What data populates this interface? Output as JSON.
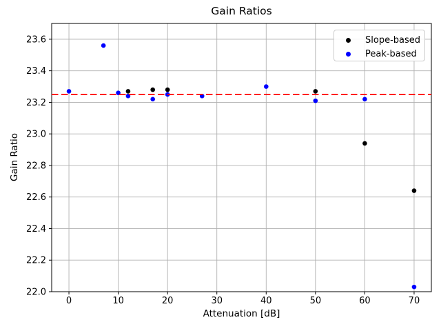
{
  "chart_data": {
    "type": "scatter",
    "title": "Gain Ratios",
    "xlabel": "Attenuation [dB]",
    "ylabel": "Gain Ratio",
    "xlim": [
      -3.5,
      73.5
    ],
    "ylim": [
      22.0,
      23.7
    ],
    "xticks": [
      0,
      10,
      20,
      30,
      40,
      50,
      60,
      70
    ],
    "yticks": [
      22.0,
      22.2,
      22.4,
      22.6,
      22.8,
      23.0,
      23.2,
      23.4,
      23.6
    ],
    "grid": true,
    "legend_position": "upper right",
    "series": [
      {
        "name": "Slope-based",
        "color": "#000000",
        "points": [
          [
            12,
            23.27
          ],
          [
            17,
            23.28
          ],
          [
            20,
            23.28
          ],
          [
            50,
            23.27
          ],
          [
            60,
            22.94
          ],
          [
            70,
            22.64
          ]
        ]
      },
      {
        "name": "Peak-based",
        "color": "#0000ff",
        "points": [
          [
            0,
            23.27
          ],
          [
            7,
            23.56
          ],
          [
            10,
            23.26
          ],
          [
            12,
            23.24
          ],
          [
            17,
            23.22
          ],
          [
            20,
            23.25
          ],
          [
            27,
            23.24
          ],
          [
            40,
            23.3
          ],
          [
            50,
            23.21
          ],
          [
            60,
            23.22
          ],
          [
            70,
            22.03
          ]
        ]
      }
    ],
    "reference_line": {
      "y": 23.25,
      "color": "#ff0000",
      "style": "dashed"
    },
    "colors": {
      "grid": "#b0b0b0",
      "spine": "#000000",
      "background": "#ffffff"
    }
  }
}
